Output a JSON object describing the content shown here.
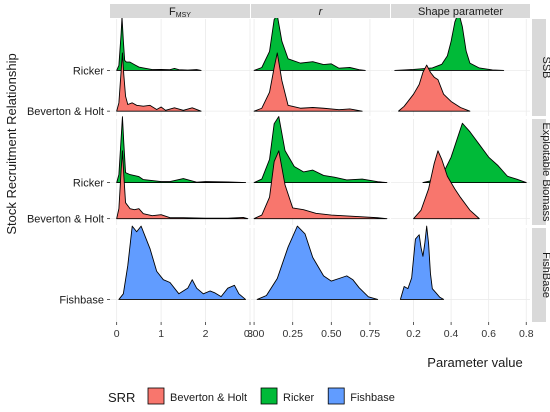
{
  "chart_data": {
    "type": "ridgeline-density",
    "y_axis_title": "Stock Recruitment Relationship",
    "x_axis_title": "Parameter value",
    "column_headers": [
      {
        "key": "fmsy",
        "main": "F",
        "sub": "MSY"
      },
      {
        "key": "r",
        "main": "r"
      },
      {
        "key": "shape",
        "main": "Shape parameter"
      }
    ],
    "row_strips": [
      {
        "key": "ssb",
        "label": "SSB"
      },
      {
        "key": "exploitable",
        "label": "Exploitable Biomass"
      },
      {
        "key": "fishbase",
        "label": "FishBase"
      }
    ],
    "y_tick_labels": {
      "ssb": [
        "Ricker",
        "Beverton & Holt"
      ],
      "exploitable": [
        "Ricker",
        "Beverton & Holt"
      ],
      "fishbase": [
        "Fishbase"
      ]
    },
    "x_axes": {
      "fmsy": {
        "range": [
          -0.15,
          3.0
        ],
        "ticks": [
          0,
          1,
          2,
          3
        ],
        "tick_labels": [
          "0",
          "1",
          "2",
          "3"
        ]
      },
      "r": {
        "range": [
          -0.02,
          0.88
        ],
        "ticks": [
          0.0,
          0.25,
          0.5,
          0.75
        ],
        "tick_labels": [
          "0.00",
          "0.25",
          "0.50",
          "0.75"
        ]
      },
      "shape": {
        "range": [
          0.08,
          0.82
        ],
        "ticks": [
          0.2,
          0.4,
          0.6,
          0.8
        ],
        "tick_labels": [
          "0.2",
          "0.4",
          "0.6",
          "0.8"
        ]
      }
    },
    "legend": {
      "title": "SRR",
      "position": "bottom",
      "items": [
        {
          "label": "Beverton & Holt",
          "color": "#f8766d"
        },
        {
          "label": "Ricker",
          "color": "#00ba38"
        },
        {
          "label": "Fishbase",
          "color": "#619cff"
        }
      ]
    },
    "series_colors": {
      "Beverton & Holt": "#f8766d",
      "Ricker": "#00ba38",
      "Fishbase": "#619cff"
    },
    "panels": [
      {
        "row": "ssb",
        "col": "fmsy",
        "ridges": [
          {
            "series": "Ricker",
            "x": [
              0.0,
              0.05,
              0.1,
              0.12,
              0.15,
              0.18,
              0.22,
              0.3,
              0.4,
              0.5,
              0.6,
              0.8,
              1.0,
              1.2,
              1.3,
              1.4,
              1.6,
              1.8,
              1.9
            ],
            "y": [
              0,
              0.3,
              2.2,
              3.2,
              1.8,
              0.6,
              0.5,
              0.5,
              0.35,
              0.2,
              0.15,
              0.05,
              0.06,
              0.04,
              0.12,
              0.04,
              0.02,
              0.05,
              0
            ]
          },
          {
            "series": "Beverton & Holt",
            "x": [
              0.0,
              0.05,
              0.1,
              0.13,
              0.16,
              0.2,
              0.25,
              0.35,
              0.45,
              0.6,
              0.75,
              0.9,
              1.0,
              1.1,
              1.3,
              1.5,
              1.7,
              1.9
            ],
            "y": [
              0,
              0.5,
              2.4,
              3.5,
              2.2,
              0.9,
              0.4,
              0.5,
              0.35,
              0.3,
              0.35,
              0.1,
              0.25,
              0.05,
              0.2,
              0.05,
              0.2,
              0
            ]
          }
        ]
      },
      {
        "row": "ssb",
        "col": "r",
        "ridges": [
          {
            "series": "Ricker",
            "x": [
              0.0,
              0.05,
              0.1,
              0.13,
              0.15,
              0.18,
              0.22,
              0.3,
              0.38,
              0.45,
              0.5,
              0.55,
              0.62,
              0.68,
              0.72
            ],
            "y": [
              0,
              0.2,
              1.3,
              3.5,
              3.8,
              2.0,
              0.8,
              0.5,
              0.6,
              0.4,
              0.45,
              0.15,
              0.2,
              0.05,
              0
            ]
          },
          {
            "series": "Beverton & Holt",
            "x": [
              0.0,
              0.05,
              0.1,
              0.13,
              0.15,
              0.18,
              0.22,
              0.3,
              0.38,
              0.45,
              0.55,
              0.62,
              0.7
            ],
            "y": [
              0,
              0.2,
              1.3,
              3.0,
              4.0,
              2.1,
              0.4,
              0.2,
              0.25,
              0.2,
              0.1,
              0.15,
              0
            ]
          }
        ]
      },
      {
        "row": "ssb",
        "col": "shape",
        "ridges": [
          {
            "series": "Ricker",
            "x": [
              0.1,
              0.2,
              0.3,
              0.35,
              0.38,
              0.4,
              0.42,
              0.44,
              0.46,
              0.48,
              0.5,
              0.55,
              0.62,
              0.68
            ],
            "y": [
              0,
              0.04,
              0.1,
              0.25,
              0.6,
              1.2,
              2.0,
              2.4,
              1.8,
              0.8,
              0.3,
              0.1,
              0.02,
              0
            ]
          },
          {
            "series": "Beverton & Holt",
            "x": [
              0.12,
              0.15,
              0.2,
              0.23,
              0.25,
              0.27,
              0.29,
              0.31,
              0.33,
              0.36,
              0.4,
              0.45,
              0.5
            ],
            "y": [
              0,
              0.2,
              0.7,
              1.1,
              1.6,
              1.9,
              1.6,
              1.4,
              1.3,
              0.7,
              0.4,
              0.15,
              0
            ]
          }
        ]
      },
      {
        "row": "exploitable",
        "col": "fmsy",
        "ridges": [
          {
            "series": "Ricker",
            "x": [
              0.0,
              0.05,
              0.1,
              0.13,
              0.16,
              0.2,
              0.3,
              0.4,
              0.5,
              0.6,
              0.8,
              1.0,
              1.2,
              1.5,
              1.8,
              2.0,
              2.5,
              2.9
            ],
            "y": [
              0,
              0.4,
              2.2,
              3.3,
              2.0,
              0.5,
              0.4,
              0.35,
              0.3,
              0.15,
              0.1,
              0.05,
              0.05,
              0.2,
              0.02,
              0.05,
              0.03,
              0
            ]
          },
          {
            "series": "Beverton & Holt",
            "x": [
              0.0,
              0.05,
              0.1,
              0.13,
              0.16,
              0.2,
              0.3,
              0.4,
              0.5,
              0.6,
              0.8,
              1.0,
              1.2,
              1.5,
              2.0,
              2.5,
              2.85,
              2.95
            ],
            "y": [
              0,
              0.5,
              2.4,
              3.4,
              2.2,
              0.8,
              0.5,
              0.45,
              0.5,
              0.25,
              0.15,
              0.2,
              0.05,
              0.05,
              0.02,
              0.02,
              0.06,
              0
            ]
          }
        ]
      },
      {
        "row": "exploitable",
        "col": "r",
        "ridges": [
          {
            "series": "Ricker",
            "x": [
              0.0,
              0.05,
              0.1,
              0.13,
              0.16,
              0.2,
              0.26,
              0.32,
              0.38,
              0.45,
              0.52,
              0.6,
              0.7,
              0.8,
              0.86
            ],
            "y": [
              0,
              0.2,
              1.3,
              3.3,
              3.7,
              1.8,
              0.9,
              0.6,
              0.7,
              0.4,
              0.3,
              0.15,
              0.2,
              0.05,
              0
            ]
          },
          {
            "series": "Beverton & Holt",
            "x": [
              0.0,
              0.05,
              0.1,
              0.13,
              0.16,
              0.2,
              0.25,
              0.32,
              0.4,
              0.5,
              0.6,
              0.7,
              0.8,
              0.86
            ],
            "y": [
              0,
              0.2,
              1.2,
              3.2,
              3.8,
              1.9,
              0.6,
              0.5,
              0.3,
              0.2,
              0.15,
              0.1,
              0.05,
              0
            ]
          }
        ]
      },
      {
        "row": "exploitable",
        "col": "shape",
        "ridges": [
          {
            "series": "Ricker",
            "x": [
              0.25,
              0.3,
              0.35,
              0.4,
              0.43,
              0.46,
              0.5,
              0.55,
              0.6,
              0.65,
              0.7,
              0.75,
              0.8
            ],
            "y": [
              0,
              0.05,
              0.15,
              0.6,
              1.0,
              1.4,
              1.2,
              0.9,
              0.6,
              0.4,
              0.15,
              0.08,
              0
            ]
          },
          {
            "series": "Beverton & Holt",
            "x": [
              0.2,
              0.24,
              0.28,
              0.31,
              0.33,
              0.35,
              0.38,
              0.42,
              0.45,
              0.5,
              0.55
            ],
            "y": [
              0,
              0.2,
              0.7,
              1.3,
              1.6,
              1.4,
              1.0,
              0.7,
              0.5,
              0.2,
              0
            ]
          }
        ]
      },
      {
        "row": "fishbase",
        "col": "fmsy",
        "ridges": [
          {
            "series": "Fishbase",
            "x": [
              0.05,
              0.15,
              0.25,
              0.35,
              0.45,
              0.55,
              0.65,
              0.75,
              0.9,
              1.05,
              1.2,
              1.4,
              1.6,
              1.7,
              1.8,
              1.95,
              2.1,
              2.2,
              2.35,
              2.5,
              2.65,
              2.75,
              2.9
            ],
            "y": [
              0,
              0.1,
              0.6,
              1.3,
              1.2,
              1.3,
              1.1,
              0.9,
              0.5,
              0.35,
              0.3,
              0.1,
              0.2,
              0.35,
              0.2,
              0.1,
              0.15,
              0.12,
              0.05,
              0.2,
              0.25,
              0.1,
              0
            ]
          }
        ]
      },
      {
        "row": "fishbase",
        "col": "r",
        "ridges": [
          {
            "series": "Fishbase",
            "x": [
              0.02,
              0.08,
              0.15,
              0.22,
              0.28,
              0.33,
              0.38,
              0.45,
              0.5,
              0.55,
              0.6,
              0.64,
              0.68,
              0.74,
              0.8
            ],
            "y": [
              0,
              0.15,
              0.8,
              2.0,
              2.8,
              2.5,
              1.6,
              0.9,
              0.7,
              0.8,
              0.9,
              0.75,
              0.45,
              0.1,
              0
            ]
          }
        ]
      },
      {
        "row": "fishbase",
        "col": "shape",
        "ridges": [
          {
            "series": "Fishbase",
            "x": [
              0.13,
              0.15,
              0.17,
              0.19,
              0.21,
              0.23,
              0.24,
              0.25,
              0.26,
              0.27,
              0.28,
              0.29,
              0.3,
              0.32,
              0.34,
              0.36
            ],
            "y": [
              0,
              0.6,
              0.5,
              1.0,
              2.8,
              3.0,
              2.4,
              2.0,
              2.6,
              3.4,
              2.6,
              1.2,
              0.5,
              0.3,
              0.1,
              0
            ]
          }
        ]
      }
    ]
  }
}
